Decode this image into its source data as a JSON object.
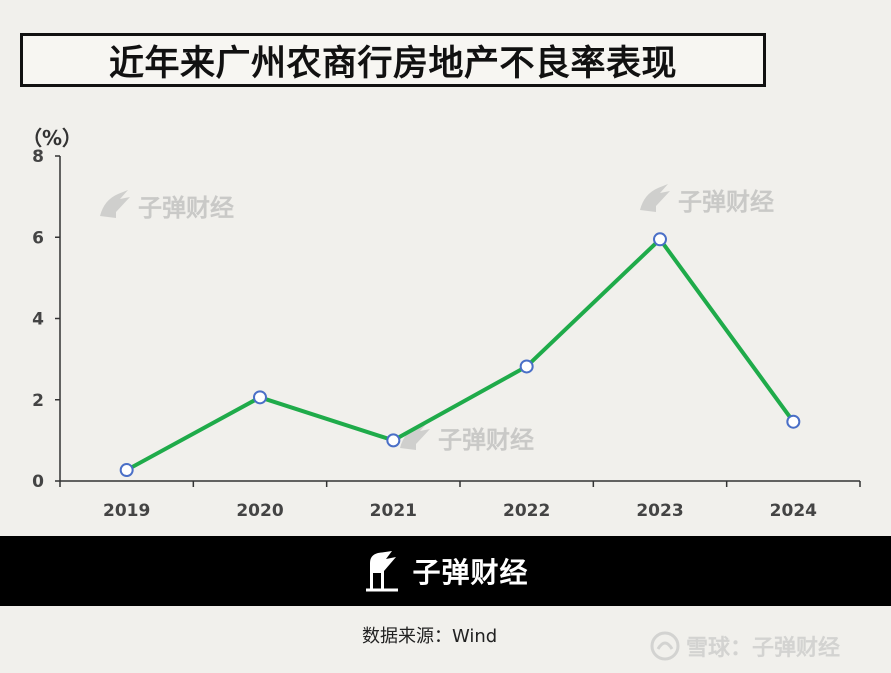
{
  "title": "近年来广州农商行房地产不良率表现",
  "unit_label": "（%）",
  "watermark_text": "子弹财经",
  "footer": {
    "brand": "子弹财经",
    "source": "数据来源：Wind",
    "xueqiu": "雪球：子弹财经"
  },
  "colors": {
    "line": "#1fab4a",
    "marker_fill": "#ffffff",
    "marker_stroke": "#4a6fc7",
    "axis": "#333333",
    "footer_band": "#000000"
  },
  "chart_data": {
    "type": "line",
    "title": "近年来广州农商行房地产不良率表现",
    "ylabel": "（%）",
    "categories": [
      "2019",
      "2020",
      "2021",
      "2022",
      "2023",
      "2024"
    ],
    "values": [
      0.27,
      2.06,
      1.0,
      2.82,
      5.95,
      1.46
    ],
    "ylim": [
      0,
      8
    ],
    "yticks": [
      "0",
      "2",
      "4",
      "6",
      "8"
    ],
    "grid": false,
    "legend": "none"
  }
}
